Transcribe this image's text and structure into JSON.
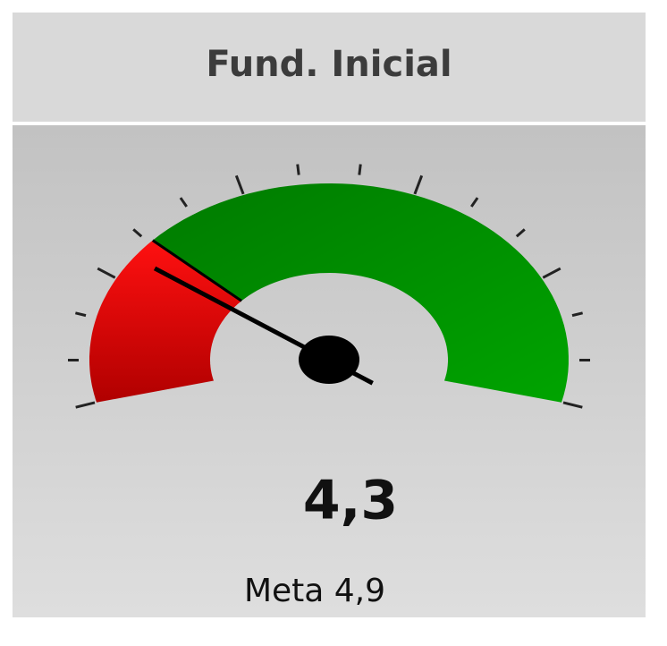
{
  "chart_data": {
    "type": "gauge",
    "title": "Fund. Inicial",
    "value": 4.3,
    "value_label": "4,3",
    "target": 4.9,
    "target_label": "Meta 4,9",
    "ylim": [
      0,
      18
    ],
    "yticks": [
      0,
      1.2,
      2.4,
      3.6,
      4.8,
      6,
      7.2,
      8.4,
      9.6,
      10.8,
      12,
      13.2,
      14.4,
      15.6,
      16.8,
      18
    ],
    "below_target_color": "#ff0000",
    "above_target_color": "#009000",
    "needle_color": "#000000"
  }
}
